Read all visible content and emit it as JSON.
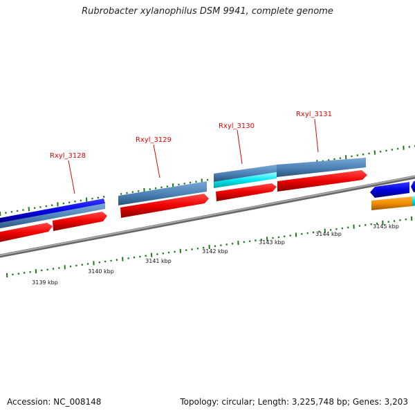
{
  "title": "Rubrobacter xylanophilus DSM 9941, complete genome",
  "accession": "Accession: NC_008148",
  "summary": "Topology: circular; Length: 3,225,748 bp; Genes: 3,203",
  "gene_labels": [
    "Rxyl_3128",
    "Rxyl_3129",
    "Rxyl_3130",
    "Rxyl_3131"
  ],
  "scale_labels": [
    "3139 kbp",
    "3140 kbp",
    "3141 kbp",
    "3142 kbp",
    "3143 kbp",
    "3144 kbp",
    "3145 kbp"
  ],
  "colors": {
    "backbone": "#8a8a8a",
    "forward_blue": "#0000e8",
    "steel_blue": "#4f86b8",
    "cds_red": "#ee0000",
    "cyan": "#00e5ee",
    "orange": "#f08c00",
    "tick_green": "#1a7a1a",
    "label_red": "#e00000"
  }
}
